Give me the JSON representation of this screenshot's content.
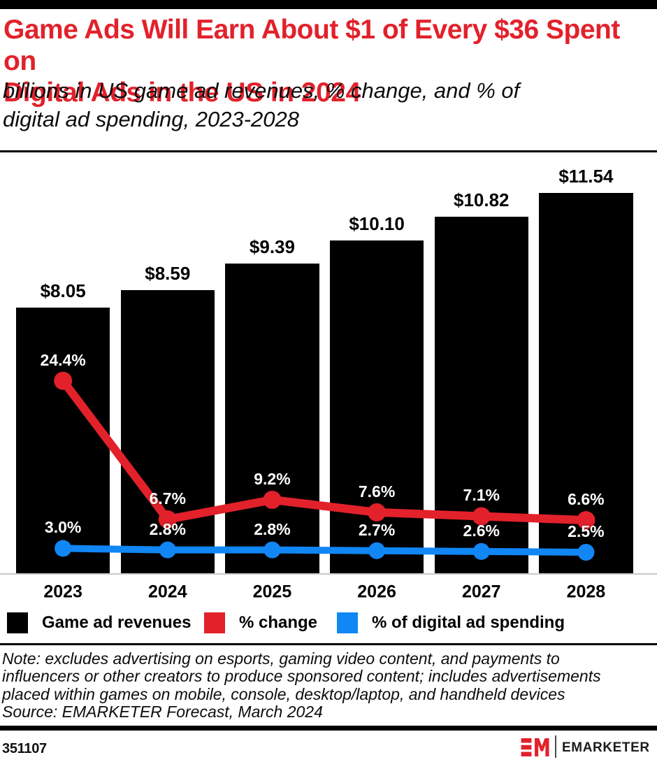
{
  "chart_data": {
    "type": "bar",
    "title": "Game Ads Will Earn About $1 of Every $36 Spent on\nDigital Ads in the US in 2024",
    "subtitle": "billions in US game ad revenues, % change, and % of\ndigital ad spending, 2023-2028",
    "categories": [
      "2023",
      "2024",
      "2025",
      "2026",
      "2027",
      "2028"
    ],
    "series": [
      {
        "name": "Game ad revenues",
        "type": "bar",
        "unit": "billions USD",
        "color": "#000000",
        "values": [
          8.05,
          8.59,
          9.39,
          10.1,
          10.82,
          11.54
        ],
        "labels": [
          "$8.05",
          "$8.59",
          "$9.39",
          "$10.10",
          "$10.82",
          "$11.54"
        ]
      },
      {
        "name": "% change",
        "type": "line",
        "unit": "percent",
        "color": "#e2212b",
        "values": [
          24.4,
          6.7,
          9.2,
          7.6,
          7.1,
          6.6
        ],
        "labels": [
          "24.4%",
          "6.7%",
          "9.2%",
          "7.6%",
          "7.1%",
          "6.6%"
        ]
      },
      {
        "name": "% of digital ad spending",
        "type": "line",
        "unit": "percent",
        "color": "#1186f5",
        "values": [
          3.0,
          2.8,
          2.8,
          2.7,
          2.6,
          2.5
        ],
        "labels": [
          "3.0%",
          "2.8%",
          "2.8%",
          "2.7%",
          "2.6%",
          "2.5%"
        ]
      }
    ],
    "legend_position": "bottom",
    "grid": false,
    "ylim_dollars": [
      0,
      12.8
    ],
    "ylim_percent": [
      0,
      54
    ],
    "xlabel": "",
    "ylabel": ""
  },
  "colors": {
    "accent_red": "#e2212b",
    "accent_blue": "#1186f5",
    "bar_black": "#000000"
  },
  "note": "Note: excludes advertising on esports, gaming video content, and payments to\ninfluencers or other creators to produce sponsored content; includes advertisements\nplaced within games on mobile, console, desktop/laptop, and handheld devices",
  "source": "Source: EMARKETER Forecast, March 2024",
  "footer": {
    "chart_id": "351107",
    "brand_name": "EMARKETER"
  }
}
